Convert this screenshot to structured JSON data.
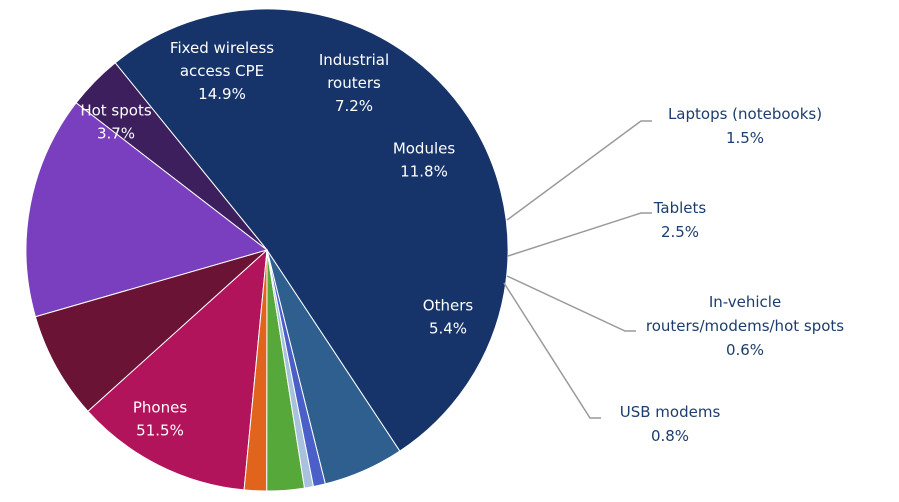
{
  "chart_data": {
    "type": "pie",
    "title": "",
    "slices": [
      {
        "label": "Others",
        "value": 5.4,
        "value_label": "5.4%",
        "color": "#2f5f8e",
        "label_mode": "inside"
      },
      {
        "label": "Phones",
        "value": 51.5,
        "value_label": "51.5%",
        "color": "#16346a",
        "label_mode": "inside"
      },
      {
        "label": "Hot spots",
        "value": 3.7,
        "value_label": "3.7%",
        "color": "#3c1f5c",
        "label_mode": "inside"
      },
      {
        "label": "Fixed wireless access CPE",
        "label_lines": [
          "Fixed wireless",
          "access CPE"
        ],
        "value": 14.9,
        "value_label": "14.9%",
        "color": "#7a3fbe",
        "label_mode": "inside"
      },
      {
        "label": "Industrial routers",
        "label_lines": [
          "Industrial",
          "routers"
        ],
        "value": 7.2,
        "value_label": "7.2%",
        "color": "#6a1335",
        "label_mode": "inside"
      },
      {
        "label": "Modules",
        "value": 11.8,
        "value_label": "11.8%",
        "color": "#b1145a",
        "label_mode": "inside"
      },
      {
        "label": "Laptops (notebooks)",
        "value": 1.5,
        "value_label": "1.5%",
        "color": "#e0641b",
        "label_mode": "callout"
      },
      {
        "label": "Tablets",
        "value": 2.5,
        "value_label": "2.5%",
        "color": "#56a83b",
        "label_mode": "callout"
      },
      {
        "label": "In-vehicle routers/modems/hot spots",
        "label_lines": [
          "In-vehicle",
          "routers/modems/hot spots"
        ],
        "value": 0.6,
        "value_label": "0.6%",
        "color": "#a8c1dc",
        "label_mode": "callout"
      },
      {
        "label": "USB modems",
        "value": 0.8,
        "value_label": "0.8%",
        "color": "#4a5fc8",
        "label_mode": "callout"
      }
    ]
  }
}
